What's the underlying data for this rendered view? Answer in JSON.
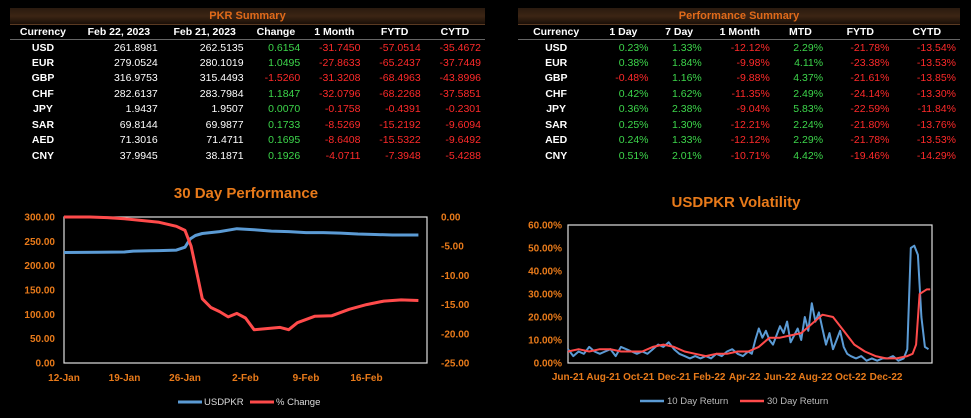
{
  "pkr_summary": {
    "title": "PKR Summary",
    "headers": [
      "Currency",
      "Feb 22, 2023",
      "Feb 21, 2023",
      "Change",
      "1 Month",
      "FYTD",
      "CYTD"
    ],
    "rows": [
      [
        "USD",
        "261.8981",
        "262.5135",
        "0.6154",
        "-31.7450",
        "-57.0514",
        "-35.4672"
      ],
      [
        "EUR",
        "279.0524",
        "280.1019",
        "1.0495",
        "-27.8633",
        "-65.2437",
        "-37.7449"
      ],
      [
        "GBP",
        "316.9753",
        "315.4493",
        "-1.5260",
        "-31.3208",
        "-68.4963",
        "-43.8996"
      ],
      [
        "CHF",
        "282.6137",
        "283.7984",
        "1.1847",
        "-32.0796",
        "-68.2268",
        "-37.5851"
      ],
      [
        "JPY",
        "1.9437",
        "1.9507",
        "0.0070",
        "-0.1758",
        "-0.4391",
        "-0.2301"
      ],
      [
        "SAR",
        "69.8144",
        "69.9877",
        "0.1733",
        "-8.5269",
        "-15.2192",
        "-9.6094"
      ],
      [
        "AED",
        "71.3016",
        "71.4711",
        "0.1695",
        "-8.6408",
        "-15.5322",
        "-9.6492"
      ],
      [
        "CNY",
        "37.9945",
        "38.1871",
        "0.1926",
        "-4.0711",
        "-7.3948",
        "-5.4288"
      ]
    ]
  },
  "performance_summary": {
    "title": "Performance Summary",
    "headers": [
      "Currency",
      "1 Day",
      "7 Day",
      "1 Month",
      "MTD",
      "FYTD",
      "CYTD"
    ],
    "rows": [
      [
        "USD",
        "0.23%",
        "1.33%",
        "-12.12%",
        "2.29%",
        "-21.78%",
        "-13.54%"
      ],
      [
        "EUR",
        "0.38%",
        "1.84%",
        "-9.98%",
        "4.11%",
        "-23.38%",
        "-13.53%"
      ],
      [
        "GBP",
        "-0.48%",
        "1.16%",
        "-9.88%",
        "4.37%",
        "-21.61%",
        "-13.85%"
      ],
      [
        "CHF",
        "0.42%",
        "1.62%",
        "-11.35%",
        "2.49%",
        "-24.14%",
        "-13.30%"
      ],
      [
        "JPY",
        "0.36%",
        "2.38%",
        "-9.04%",
        "5.83%",
        "-22.59%",
        "-11.84%"
      ],
      [
        "SAR",
        "0.25%",
        "1.30%",
        "-12.21%",
        "2.24%",
        "-21.80%",
        "-13.76%"
      ],
      [
        "AED",
        "0.24%",
        "1.33%",
        "-12.12%",
        "2.29%",
        "-21.78%",
        "-13.53%"
      ],
      [
        "CNY",
        "0.51%",
        "2.01%",
        "-10.71%",
        "4.42%",
        "-19.46%",
        "-14.29%"
      ]
    ]
  },
  "chart_data": [
    {
      "type": "line",
      "title": "30 Day Performance",
      "x_ticks": [
        "12-Jan",
        "19-Jan",
        "26-Jan",
        "2-Feb",
        "9-Feb",
        "16-Feb"
      ],
      "y_left_ticks": [
        "300.00",
        "250.00",
        "200.00",
        "150.00",
        "100.00",
        "50.00",
        "0.00"
      ],
      "y_right_ticks": [
        "0.00",
        "-5.00",
        "-10.00",
        "-15.00",
        "-20.00",
        "-25.00"
      ],
      "ylim_left": [
        0,
        300
      ],
      "ylim_right": [
        -25,
        0
      ],
      "x_range_days": [
        0,
        42
      ],
      "series": [
        {
          "name": "USDPKR",
          "axis": "left",
          "color": "#5b9bd5",
          "x": [
            0,
            4,
            7,
            8,
            10,
            11,
            13,
            14,
            14.6,
            15.2,
            16,
            18,
            20,
            22,
            24,
            26,
            28,
            30,
            32,
            34,
            36,
            38,
            40,
            41
          ],
          "y": [
            227,
            227.5,
            228,
            230,
            230.5,
            231,
            232,
            238,
            255,
            262,
            266,
            270,
            276,
            274,
            271,
            270,
            268,
            268,
            267,
            265,
            264,
            263,
            263,
            263
          ]
        },
        {
          "name": "% Change",
          "axis": "right",
          "color": "#ff4b4b",
          "x": [
            0,
            3,
            5,
            7,
            9,
            11,
            13,
            14,
            14.7,
            15.5,
            16,
            17,
            18,
            19,
            20,
            21,
            22,
            25,
            26,
            27,
            29,
            31,
            33,
            35,
            37,
            39,
            41
          ],
          "y": [
            0,
            0,
            -0.1,
            -0.3,
            -0.6,
            -0.9,
            -1.6,
            -2.3,
            -5,
            -10.5,
            -14,
            -15.5,
            -16.2,
            -17.1,
            -16.5,
            -17.3,
            -19.3,
            -18.9,
            -19.3,
            -18.1,
            -17,
            -16.9,
            -15.8,
            -15,
            -14.4,
            -14.2,
            -14.3
          ]
        }
      ]
    },
    {
      "type": "line",
      "title": "USDPKR Volatility",
      "x_ticks": [
        "Jun-21",
        "Aug-21",
        "Oct-21",
        "Dec-21",
        "Feb-22",
        "Apr-22",
        "Jun-22",
        "Aug-22",
        "Oct-22",
        "Dec-22"
      ],
      "y_ticks": [
        "60.00%",
        "50.00%",
        "40.00%",
        "30.00%",
        "20.00%",
        "10.00%",
        "0.00%"
      ],
      "ylim": [
        0,
        0.6
      ],
      "x_range_months": [
        0,
        20.6
      ],
      "series": [
        {
          "name": "10 Day Return",
          "color": "#5b9bd5",
          "x": [
            0,
            0.3,
            0.6,
            0.9,
            1.2,
            1.5,
            1.8,
            2.1,
            2.4,
            2.7,
            3,
            3.3,
            3.6,
            3.9,
            4.2,
            4.5,
            4.8,
            5.1,
            5.4,
            5.7,
            6,
            6.3,
            6.6,
            6.9,
            7.2,
            7.5,
            7.8,
            8.1,
            8.4,
            8.7,
            9,
            9.3,
            9.6,
            9.9,
            10.2,
            10.4,
            10.6,
            10.8,
            11,
            11.2,
            11.4,
            11.6,
            11.8,
            12,
            12.2,
            12.4,
            12.6,
            12.8,
            13,
            13.2,
            13.4,
            13.6,
            13.8,
            14,
            14.2,
            14.4,
            14.6,
            14.8,
            15,
            15.2,
            15.4,
            15.6,
            15.8,
            16,
            16.3,
            16.6,
            16.9,
            17.2,
            17.5,
            17.8,
            18.1,
            18.4,
            18.7,
            19,
            19.2,
            19.4,
            19.6,
            19.8,
            20,
            20.2,
            20.4
          ],
          "y": [
            0.06,
            0.03,
            0.05,
            0.04,
            0.07,
            0.05,
            0.04,
            0.05,
            0.06,
            0.03,
            0.07,
            0.06,
            0.05,
            0.04,
            0.05,
            0.04,
            0.06,
            0.08,
            0.07,
            0.09,
            0.06,
            0.04,
            0.03,
            0.02,
            0.03,
            0.02,
            0.03,
            0.02,
            0.04,
            0.03,
            0.05,
            0.06,
            0.04,
            0.03,
            0.05,
            0.04,
            0.1,
            0.15,
            0.11,
            0.14,
            0.1,
            0.08,
            0.12,
            0.16,
            0.13,
            0.18,
            0.09,
            0.12,
            0.15,
            0.1,
            0.2,
            0.14,
            0.26,
            0.18,
            0.22,
            0.15,
            0.08,
            0.13,
            0.06,
            0.1,
            0.14,
            0.07,
            0.04,
            0.03,
            0.02,
            0.03,
            0.01,
            0.02,
            0.01,
            0.02,
            0.02,
            0.03,
            0.01,
            0.02,
            0.06,
            0.5,
            0.51,
            0.47,
            0.2,
            0.07,
            0.06
          ]
        },
        {
          "name": "30 Day Return",
          "color": "#ff4b4b",
          "x": [
            0,
            0.6,
            1.2,
            1.8,
            2.4,
            3,
            3.6,
            4.2,
            4.8,
            5.4,
            6,
            6.6,
            7.2,
            7.8,
            8.4,
            9,
            9.6,
            10.2,
            10.8,
            11.4,
            12,
            12.6,
            13.2,
            13.8,
            14.4,
            15,
            15.6,
            16.2,
            16.8,
            17.4,
            18,
            18.6,
            19.2,
            19.5,
            19.7,
            19.9,
            20.1,
            20.3,
            20.5
          ],
          "y": [
            0.05,
            0.06,
            0.05,
            0.06,
            0.06,
            0.05,
            0.05,
            0.05,
            0.07,
            0.08,
            0.07,
            0.05,
            0.04,
            0.03,
            0.04,
            0.04,
            0.05,
            0.05,
            0.07,
            0.11,
            0.11,
            0.12,
            0.13,
            0.17,
            0.21,
            0.2,
            0.14,
            0.08,
            0.05,
            0.03,
            0.02,
            0.02,
            0.03,
            0.04,
            0.08,
            0.3,
            0.31,
            0.32,
            0.32
          ]
        }
      ]
    }
  ]
}
